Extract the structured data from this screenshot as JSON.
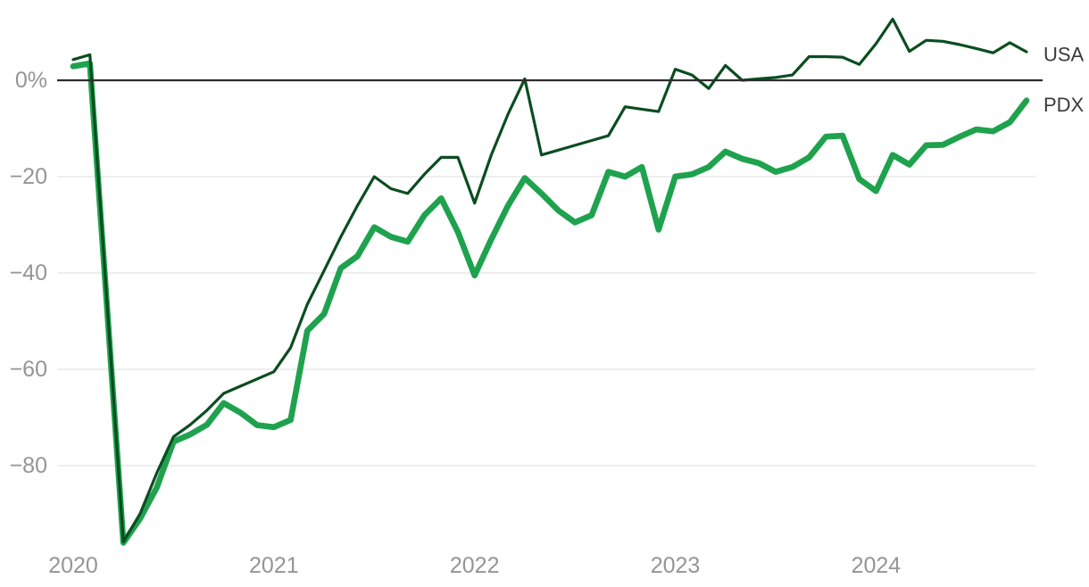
{
  "chart_data": {
    "type": "line",
    "title": "",
    "xlabel": "",
    "ylabel": "",
    "y_unit": "%",
    "x_tick_labels": [
      "2020",
      "2021",
      "2022",
      "2023",
      "2024"
    ],
    "x_tick_month_index": [
      0,
      12,
      24,
      36,
      48
    ],
    "points_per_series": 58,
    "x_note": "monthly points, Jan 2020 through Oct 2024",
    "ylim": [
      -97,
      13
    ],
    "grid": "horizontal",
    "legend_position": "right-end-of-lines",
    "y_ticks": [
      {
        "label": "0%",
        "value": 0
      },
      {
        "label": "−20",
        "value": -20
      },
      {
        "label": "−40",
        "value": -40
      },
      {
        "label": "−60",
        "value": -60
      },
      {
        "label": "−80",
        "value": -80
      }
    ],
    "series": [
      {
        "name": "USA",
        "color": "#0b4d20",
        "stroke_width": 3.2,
        "values": [
          4.3,
          5.3,
          -45,
          -95.8,
          -90,
          -81.5,
          -74,
          -71.5,
          -68.5,
          -65,
          -63.5,
          -62,
          -60.5,
          -55.5,
          -46.5,
          -39.5,
          -32.5,
          -26,
          -20,
          -22.5,
          -23.5,
          -19.5,
          -16,
          -16,
          -25.5,
          -15.5,
          -7,
          0.3,
          -15.5,
          -14.5,
          -13.5,
          -12.5,
          -11.5,
          -5.5,
          -6,
          -6.5,
          2.3,
          1.1,
          -1.7,
          3.1,
          0,
          0.3,
          0.6,
          1.1,
          4.9,
          4.9,
          4.8,
          3.3,
          7.6,
          12.7,
          6.0,
          8.3,
          8.1,
          7.4,
          6.6,
          5.7,
          7.8,
          5.9
        ]
      },
      {
        "name": "PDX",
        "color": "#1fa24e",
        "stroke_width": 6.7,
        "values": [
          2.9,
          3.5,
          -46,
          -96,
          -91,
          -84.5,
          -75,
          -73.5,
          -71.5,
          -67,
          -69,
          -71.6,
          -72,
          -70.5,
          -52,
          -48.5,
          -39,
          -36.5,
          -30.5,
          -32.5,
          -33.5,
          -28,
          -24.5,
          -31.5,
          -40.5,
          -33,
          -26,
          -20.3,
          -23.5,
          -27,
          -29.5,
          -28,
          -19,
          -20,
          -18,
          -31,
          -20,
          -19.5,
          -18,
          -14.8,
          -16.3,
          -17.2,
          -19,
          -18,
          -16,
          -11.7,
          -11.5,
          -20.5,
          -23,
          -15.5,
          -17.5,
          -13.5,
          -13.4,
          -11.7,
          -10.2,
          -10.6,
          -8.7,
          -4.2
        ]
      }
    ],
    "colors": {
      "background": "#ffffff",
      "zero_line": "#2d2d2d",
      "gridline": "#e3e3e3",
      "axis_text": "#959595",
      "series_label_text": "#3a3a3a"
    }
  }
}
